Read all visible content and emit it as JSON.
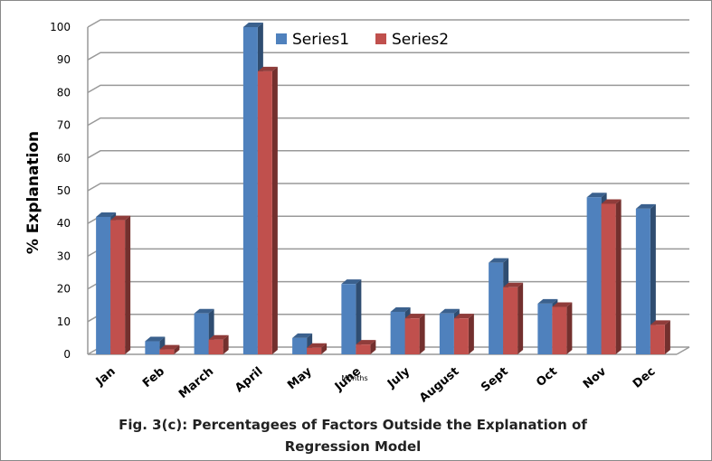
{
  "chart_data": {
    "type": "bar3d",
    "caption": "Fig. 3(c): Percentagees of Factors Outside the Explanation of Regression Model",
    "y_label": "% Explanation",
    "x_label": "Months",
    "categories": [
      "Jan",
      "Feb",
      "March",
      "April",
      "May",
      "June",
      "July",
      "August",
      "Sept",
      "Oct",
      "Nov",
      "Dec"
    ],
    "series": [
      {
        "name": "Series1",
        "color": "#4f81bd",
        "values": [
          42,
          4,
          12.5,
          100,
          5,
          21.5,
          13,
          12.5,
          28,
          15.5,
          48,
          44.5
        ]
      },
      {
        "name": "Series2",
        "color": "#c0504d",
        "values": [
          41,
          1.5,
          4.5,
          86.5,
          2,
          3,
          11,
          11,
          20.5,
          14.5,
          46,
          9
        ]
      }
    ],
    "ylim": [
      0,
      100
    ],
    "yticks": [
      0,
      10,
      20,
      30,
      40,
      50,
      60,
      70,
      80,
      90,
      100
    ],
    "grid": true,
    "legend": "top"
  }
}
